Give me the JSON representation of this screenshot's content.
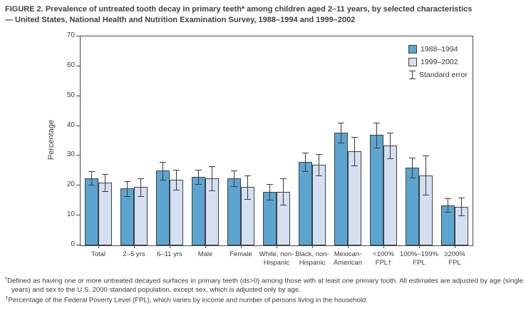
{
  "title": {
    "line1": "FIGURE 2. Prevalence of untreated tooth decay in primary teeth* among children aged 2–11 years, by selected characteristics",
    "line2": "— United States, National Health and Nutrition Examination Survey, 1988–1994 and 1999–2002"
  },
  "chart_data": {
    "type": "bar",
    "ylabel": "Percentage",
    "ylim": [
      0,
      70
    ],
    "yticks": [
      0,
      10,
      20,
      30,
      40,
      50,
      60,
      70
    ],
    "grid": false,
    "legend_position": "top-right-inside",
    "error_legend_label": "Standard error",
    "categories": [
      [
        "Total"
      ],
      [
        "2–5 yrs"
      ],
      [
        "6–11 yrs"
      ],
      [
        "Male"
      ],
      [
        "Female"
      ],
      [
        "White, non-",
        "Hispanic"
      ],
      [
        "Black, non-",
        "Hispanic"
      ],
      [
        "Mexican-",
        "American"
      ],
      [
        "<100%",
        "FPL†"
      ],
      [
        "100%–199%",
        "FPL"
      ],
      [
        "≥200%",
        "FPL"
      ]
    ],
    "series": [
      {
        "name": "1988–1994",
        "color": "#5ba5d0",
        "values": [
          22.5,
          19,
          25,
          23,
          22.5,
          18,
          28,
          37.7,
          37,
          26,
          13.5
        ],
        "se": [
          2.3,
          2.4,
          3.0,
          2.4,
          2.7,
          2.6,
          3.1,
          3.4,
          4.2,
          3.4,
          2.2
        ]
      },
      {
        "name": "1999–2002",
        "color": "#d4dff1",
        "values": [
          21,
          19.5,
          22,
          22.5,
          19.5,
          18,
          27,
          31.5,
          33.5,
          23.5,
          13
        ],
        "se": [
          2.8,
          3.0,
          3.4,
          4.1,
          3.9,
          4.4,
          3.5,
          4.7,
          4.3,
          6.5,
          2.9
        ]
      }
    ]
  },
  "footnotes": [
    {
      "marker": "*",
      "text": "Defined as having one or more untreated decayed surfaces in primary teeth (ds>0) among those with at least one primary tooth. All estimates are adjusted by age (single years) and sex to the U.S. 2000 standard population, except sex, which is adjusted only by age."
    },
    {
      "marker": "†",
      "text": "Percentage of the Federal Poverty Level (FPL), which varies by income and number of persons living in the household."
    }
  ],
  "colors": {
    "series_1988_1994": "#5ba5d0",
    "series_1999_2002": "#d4dff1",
    "bar_border": "#414141",
    "axis": "#4a4a4a",
    "text": "#3b3b3b"
  }
}
